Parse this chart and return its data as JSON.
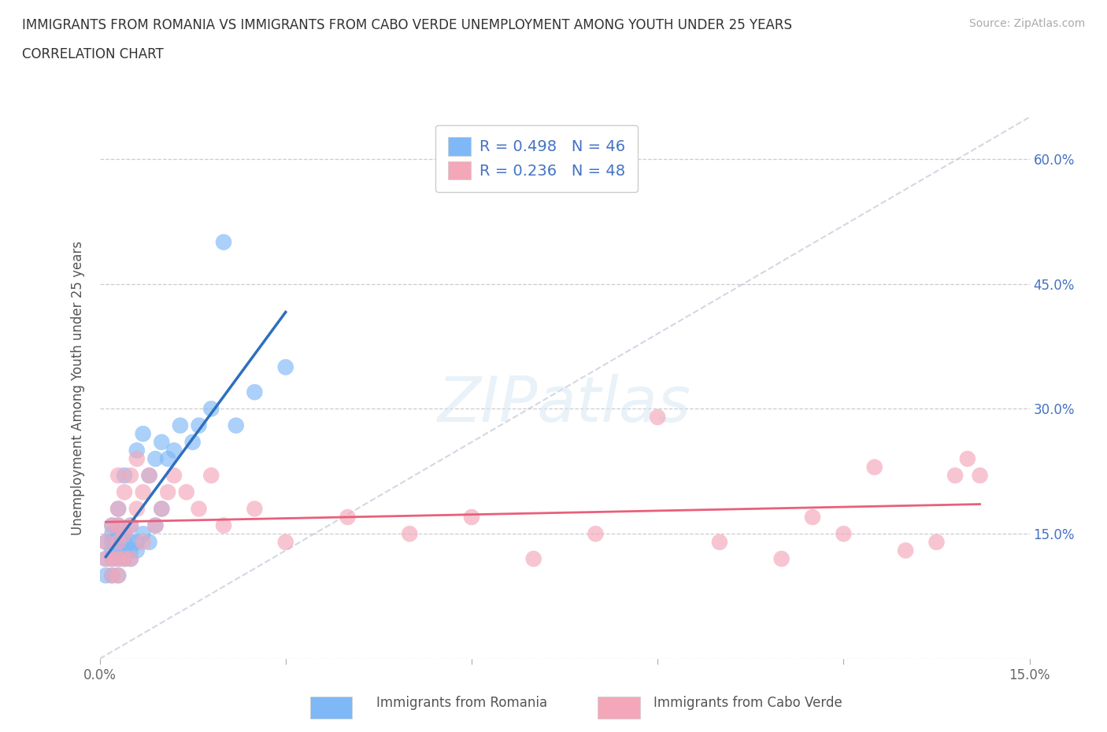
{
  "title_line1": "IMMIGRANTS FROM ROMANIA VS IMMIGRANTS FROM CABO VERDE UNEMPLOYMENT AMONG YOUTH UNDER 25 YEARS",
  "title_line2": "CORRELATION CHART",
  "source": "Source: ZipAtlas.com",
  "ylabel": "Unemployment Among Youth under 25 years",
  "xlim": [
    0.0,
    0.15
  ],
  "ylim": [
    0.0,
    0.65
  ],
  "xticks": [
    0.0,
    0.03,
    0.06,
    0.09,
    0.12,
    0.15
  ],
  "yticks": [
    0.0,
    0.15,
    0.3,
    0.45,
    0.6
  ],
  "romania_color": "#7EB8F7",
  "cabo_verde_color": "#F4A7B9",
  "trendline_diag_color": "#C0C8D8",
  "trendline_romania": "#2E6FBF",
  "trendline_cabo_verde": "#E8607A",
  "legend_text_color": "#4472C4",
  "R_romania": 0.498,
  "N_romania": 46,
  "R_cabo_verde": 0.236,
  "N_cabo_verde": 48,
  "watermark": "ZIPatlas",
  "romania_x": [
    0.001,
    0.001,
    0.001,
    0.002,
    0.002,
    0.002,
    0.002,
    0.002,
    0.002,
    0.003,
    0.003,
    0.003,
    0.003,
    0.003,
    0.003,
    0.003,
    0.004,
    0.004,
    0.004,
    0.004,
    0.004,
    0.005,
    0.005,
    0.005,
    0.005,
    0.006,
    0.006,
    0.006,
    0.007,
    0.007,
    0.008,
    0.008,
    0.009,
    0.009,
    0.01,
    0.01,
    0.011,
    0.012,
    0.013,
    0.015,
    0.016,
    0.018,
    0.02,
    0.022,
    0.025,
    0.03
  ],
  "romania_y": [
    0.1,
    0.12,
    0.14,
    0.1,
    0.12,
    0.13,
    0.14,
    0.15,
    0.16,
    0.1,
    0.12,
    0.13,
    0.14,
    0.15,
    0.16,
    0.18,
    0.12,
    0.13,
    0.14,
    0.15,
    0.22,
    0.12,
    0.13,
    0.14,
    0.16,
    0.13,
    0.14,
    0.25,
    0.15,
    0.27,
    0.14,
    0.22,
    0.16,
    0.24,
    0.18,
    0.26,
    0.24,
    0.25,
    0.28,
    0.26,
    0.28,
    0.3,
    0.5,
    0.28,
    0.32,
    0.35
  ],
  "cabo_verde_x": [
    0.001,
    0.001,
    0.002,
    0.002,
    0.002,
    0.003,
    0.003,
    0.003,
    0.003,
    0.003,
    0.003,
    0.004,
    0.004,
    0.004,
    0.005,
    0.005,
    0.005,
    0.006,
    0.006,
    0.007,
    0.007,
    0.008,
    0.009,
    0.01,
    0.011,
    0.012,
    0.014,
    0.016,
    0.018,
    0.02,
    0.025,
    0.03,
    0.04,
    0.05,
    0.06,
    0.07,
    0.08,
    0.09,
    0.1,
    0.11,
    0.115,
    0.12,
    0.125,
    0.13,
    0.135,
    0.138,
    0.14,
    0.142
  ],
  "cabo_verde_y": [
    0.12,
    0.14,
    0.1,
    0.12,
    0.16,
    0.1,
    0.12,
    0.14,
    0.16,
    0.18,
    0.22,
    0.12,
    0.15,
    0.2,
    0.12,
    0.16,
    0.22,
    0.18,
    0.24,
    0.14,
    0.2,
    0.22,
    0.16,
    0.18,
    0.2,
    0.22,
    0.2,
    0.18,
    0.22,
    0.16,
    0.18,
    0.14,
    0.17,
    0.15,
    0.17,
    0.12,
    0.15,
    0.29,
    0.14,
    0.12,
    0.17,
    0.15,
    0.23,
    0.13,
    0.14,
    0.22,
    0.24,
    0.22
  ]
}
